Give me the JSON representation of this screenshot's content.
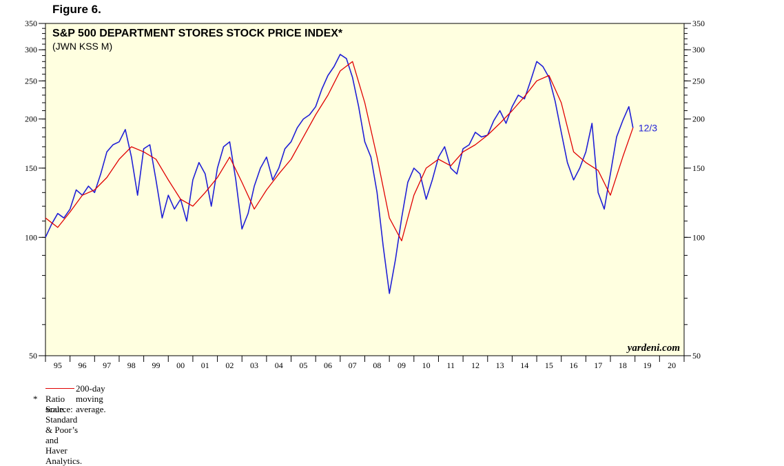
{
  "figure_label": "Figure 6.",
  "chart_data": {
    "type": "line",
    "title": "S&P 500 DEPARTMENT STORES STOCK PRICE INDEX*",
    "subtitle": "(JWN KSS M)",
    "y_scale": "log",
    "ylim": [
      50,
      350
    ],
    "y_ticks": [
      50,
      100,
      150,
      200,
      250,
      300,
      350
    ],
    "y_tick_labels": [
      "50",
      "100",
      "150",
      "200",
      "250",
      "300",
      "350"
    ],
    "xlim": [
      1995.0,
      2021.0
    ],
    "x_tick_labels": [
      "95",
      "96",
      "97",
      "98",
      "99",
      "00",
      "01",
      "02",
      "03",
      "04",
      "05",
      "06",
      "07",
      "08",
      "09",
      "10",
      "11",
      "12",
      "13",
      "14",
      "15",
      "16",
      "17",
      "18",
      "19",
      "20"
    ],
    "end_label": "12/3",
    "watermark": "yardeni.com",
    "colors": {
      "index": "#1f1fd6",
      "moving_average": "#e00000",
      "plot_bg": "#ffffe0"
    },
    "series": [
      {
        "name": "S&P 500 Department Stores Stock Price Index",
        "x": [
          1995.0,
          1995.25,
          1995.5,
          1995.75,
          1996.0,
          1996.25,
          1996.5,
          1996.75,
          1997.0,
          1997.25,
          1997.5,
          1997.75,
          1998.0,
          1998.25,
          1998.5,
          1998.75,
          1999.0,
          1999.25,
          1999.5,
          1999.75,
          2000.0,
          2000.25,
          2000.5,
          2000.75,
          2001.0,
          2001.25,
          2001.5,
          2001.75,
          2002.0,
          2002.25,
          2002.5,
          2002.75,
          2003.0,
          2003.25,
          2003.5,
          2003.75,
          2004.0,
          2004.25,
          2004.5,
          2004.75,
          2005.0,
          2005.25,
          2005.5,
          2005.75,
          2006.0,
          2006.25,
          2006.5,
          2006.75,
          2007.0,
          2007.25,
          2007.5,
          2007.75,
          2008.0,
          2008.25,
          2008.5,
          2008.75,
          2009.0,
          2009.25,
          2009.5,
          2009.75,
          2010.0,
          2010.25,
          2010.5,
          2010.75,
          2011.0,
          2011.25,
          2011.5,
          2011.75,
          2012.0,
          2012.25,
          2012.5,
          2012.75,
          2013.0,
          2013.25,
          2013.5,
          2013.75,
          2014.0,
          2014.25,
          2014.5,
          2014.75,
          2015.0,
          2015.25,
          2015.5,
          2015.75,
          2016.0,
          2016.25,
          2016.5,
          2016.75,
          2017.0,
          2017.25,
          2017.5,
          2017.75,
          2018.0,
          2018.25,
          2018.5,
          2018.75,
          2018.92
        ],
        "values": [
          100,
          108,
          115,
          112,
          118,
          132,
          128,
          135,
          130,
          145,
          165,
          172,
          175,
          188,
          160,
          128,
          168,
          172,
          140,
          112,
          128,
          118,
          125,
          110,
          140,
          155,
          145,
          120,
          150,
          170,
          175,
          140,
          105,
          115,
          135,
          150,
          160,
          140,
          150,
          168,
          175,
          190,
          200,
          205,
          215,
          238,
          258,
          272,
          292,
          285,
          255,
          215,
          175,
          160,
          130,
          95,
          72,
          88,
          112,
          138,
          150,
          145,
          125,
          140,
          160,
          170,
          150,
          145,
          168,
          172,
          185,
          180,
          182,
          198,
          210,
          195,
          215,
          230,
          225,
          250,
          280,
          272,
          255,
          222,
          185,
          155,
          140,
          150,
          165,
          195,
          130,
          118,
          145,
          180,
          198,
          215,
          190
        ]
      },
      {
        "name": "200-day moving average.",
        "x": [
          1995.0,
          1995.5,
          1996.0,
          1996.5,
          1997.0,
          1997.5,
          1998.0,
          1998.5,
          1999.0,
          1999.5,
          2000.0,
          2000.5,
          2001.0,
          2001.5,
          2002.0,
          2002.5,
          2003.0,
          2003.5,
          2004.0,
          2004.5,
          2005.0,
          2005.5,
          2006.0,
          2006.5,
          2007.0,
          2007.5,
          2008.0,
          2008.5,
          2009.0,
          2009.5,
          2010.0,
          2010.5,
          2011.0,
          2011.5,
          2012.0,
          2012.5,
          2013.0,
          2013.5,
          2014.0,
          2014.5,
          2015.0,
          2015.5,
          2016.0,
          2016.5,
          2017.0,
          2017.5,
          2018.0,
          2018.5,
          2018.92
        ],
        "values": [
          112,
          106,
          116,
          128,
          132,
          142,
          158,
          170,
          165,
          158,
          140,
          125,
          120,
          130,
          142,
          160,
          138,
          118,
          132,
          145,
          158,
          180,
          205,
          230,
          265,
          280,
          220,
          160,
          112,
          98,
          128,
          150,
          158,
          152,
          165,
          172,
          182,
          195,
          210,
          228,
          250,
          258,
          220,
          165,
          155,
          148,
          128,
          160,
          190
        ]
      }
    ]
  },
  "notes": {
    "legend": "200-day moving average.",
    "star": "*",
    "ratio": "Ratio scale.",
    "source": "Source: Standard & Poor’s and Haver Analytics."
  }
}
